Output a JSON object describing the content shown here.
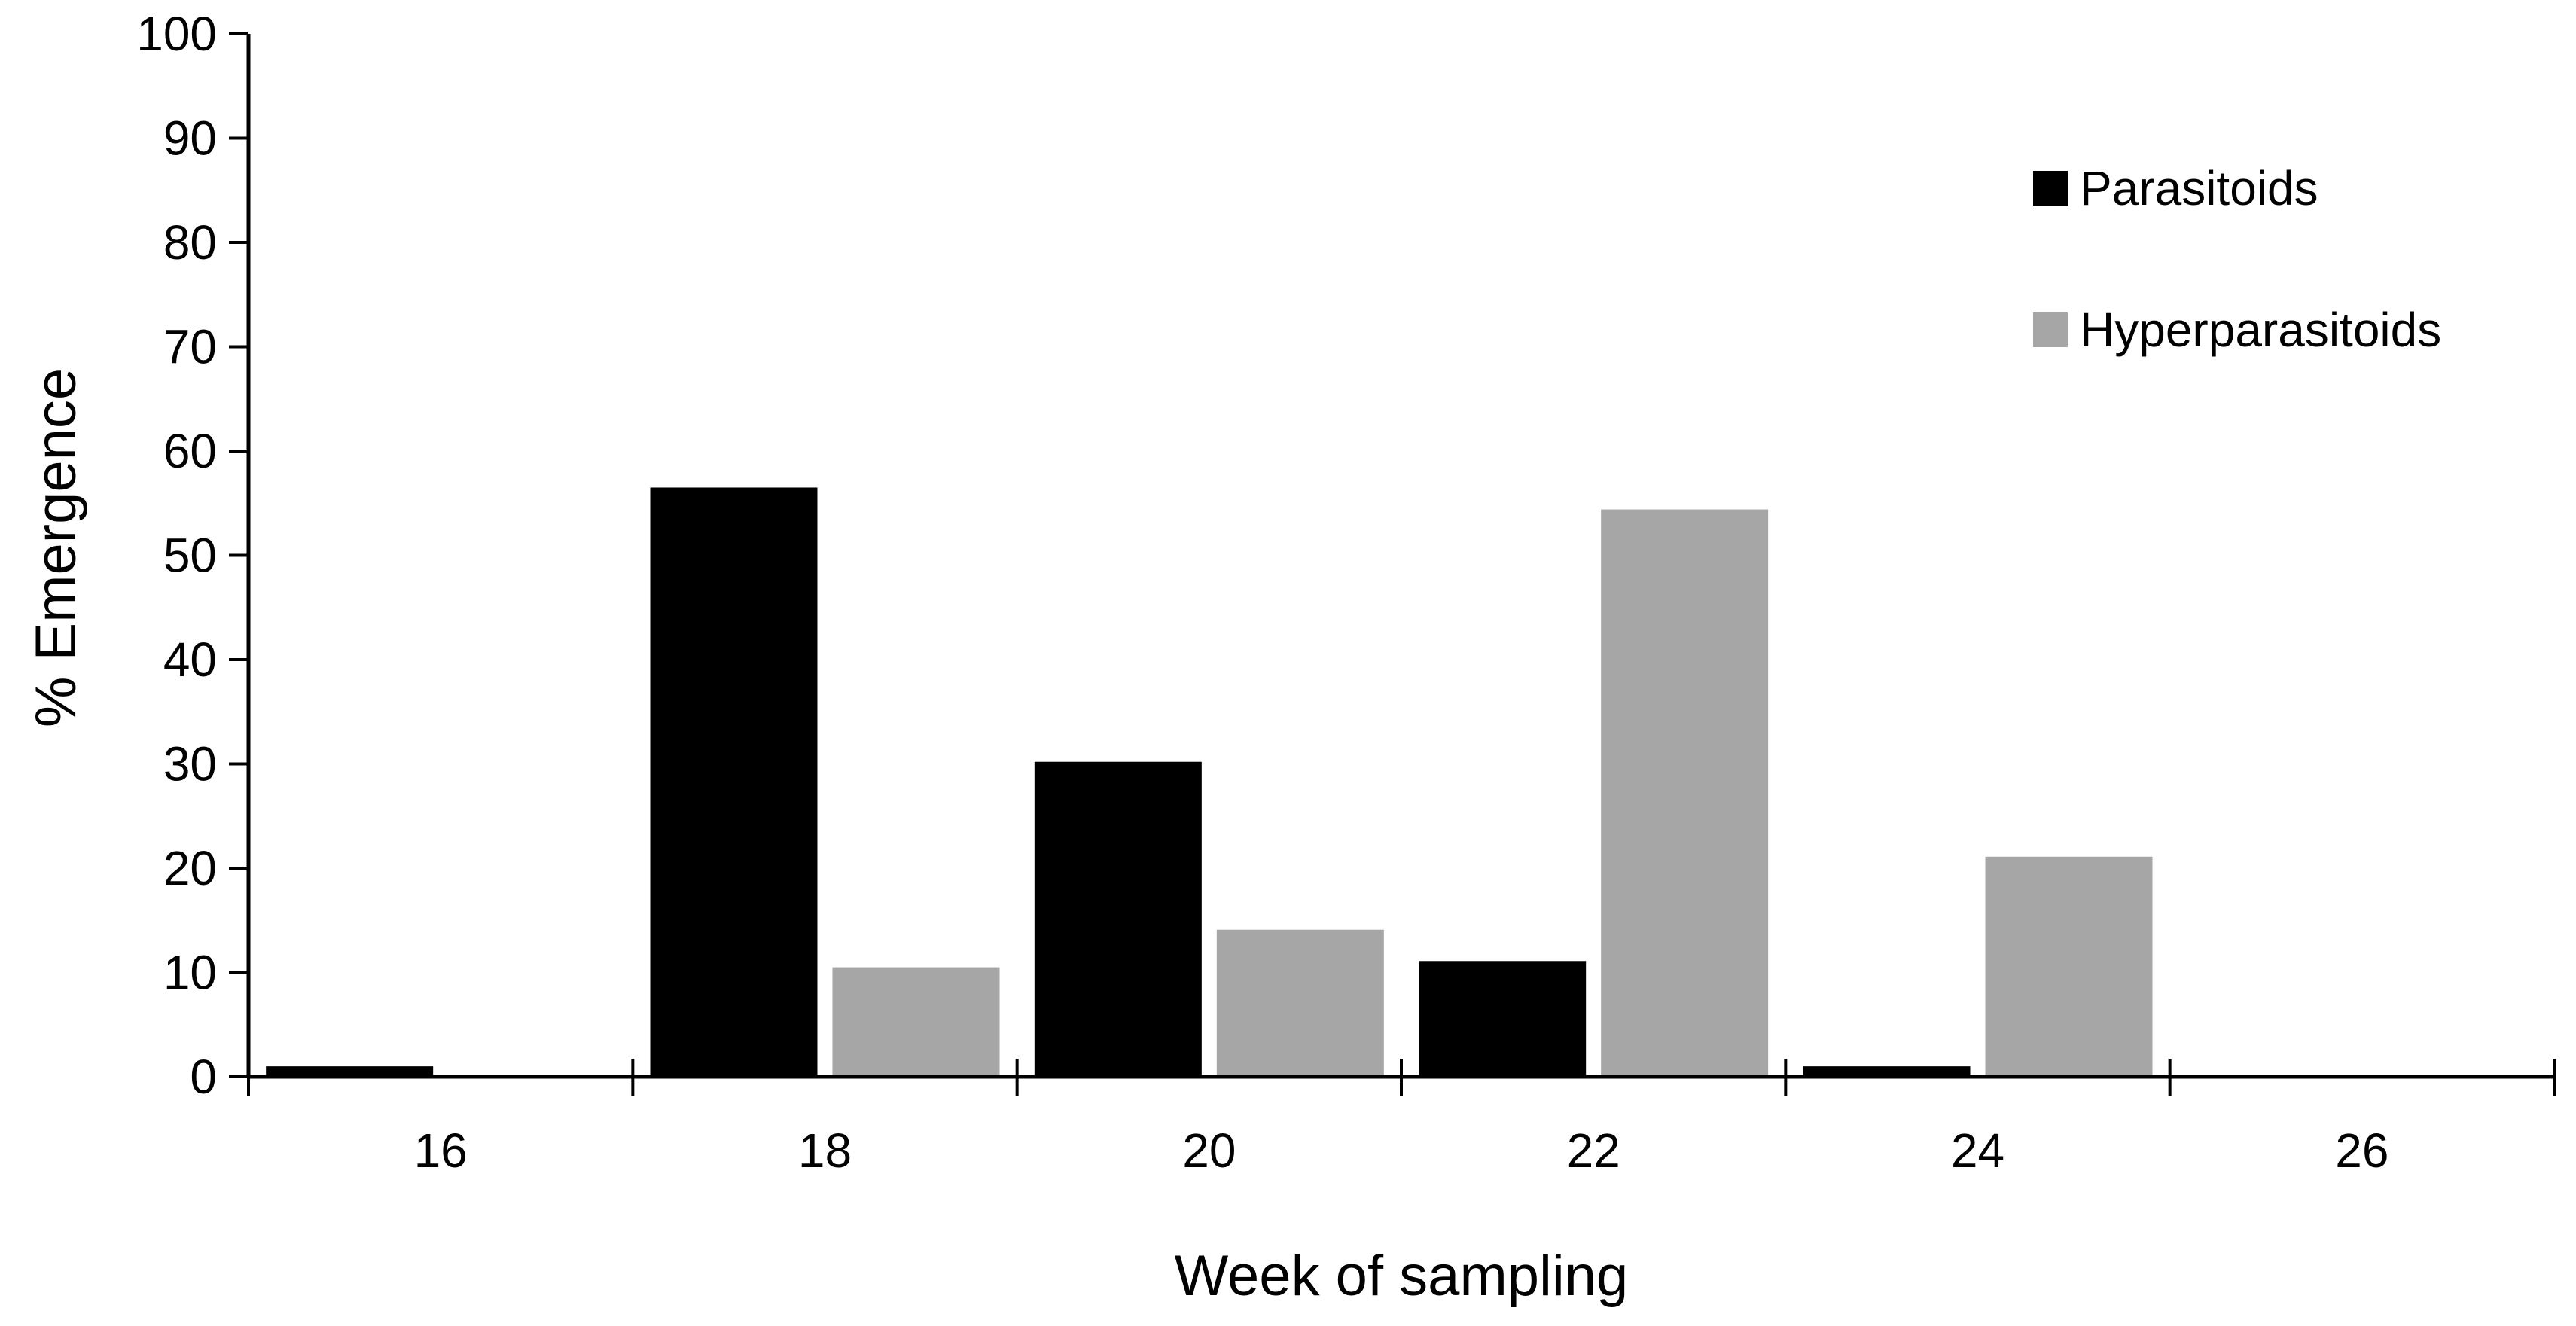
{
  "chart_data": {
    "type": "bar",
    "title": "",
    "xlabel": "Week of sampling",
    "ylabel": "% Emergence",
    "categories": [
      "16",
      "18",
      "20",
      "22",
      "24",
      "26"
    ],
    "series": [
      {
        "name": "Parasitoids",
        "color": "#000000",
        "values": [
          1,
          56.5,
          30.2,
          11.1,
          1,
          0
        ]
      },
      {
        "name": "Hyperparasitoids",
        "color": "#a6a6a6",
        "values": [
          0,
          10.5,
          14.1,
          54.4,
          21.1,
          0
        ]
      }
    ],
    "ylim": [
      0,
      100
    ],
    "yticks": [
      "0",
      "10",
      "20",
      "30",
      "40",
      "50",
      "60",
      "70",
      "80",
      "90",
      "100"
    ],
    "grid": false,
    "legend_position": "top-right"
  }
}
